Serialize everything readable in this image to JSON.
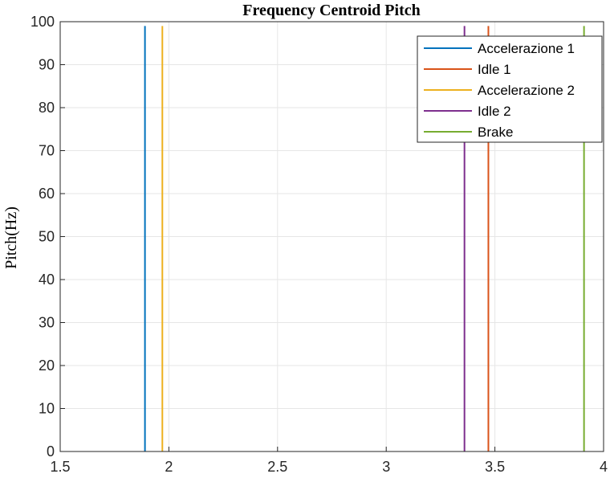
{
  "chart_data": {
    "type": "line",
    "title": "Frequency Centroid Pitch",
    "xlabel": "",
    "ylabel": "Pitch(Hz)",
    "xlim": [
      1.5,
      4
    ],
    "ylim": [
      0,
      100
    ],
    "xticks": [
      "1.5",
      "2",
      "2.5",
      "3",
      "3.5",
      "4"
    ],
    "yticks": [
      "0",
      "10",
      "20",
      "30",
      "40",
      "50",
      "60",
      "70",
      "80",
      "90",
      "100"
    ],
    "grid": true,
    "legend_position": "top-right",
    "series": [
      {
        "name": "Accelerazione 1",
        "color": "#0072BD",
        "x": [
          1.89,
          1.89
        ],
        "y": [
          0,
          99
        ]
      },
      {
        "name": "Idle 1",
        "color": "#D95319",
        "x": [
          3.47,
          3.47
        ],
        "y": [
          0,
          99
        ]
      },
      {
        "name": "Accelerazione 2",
        "color": "#EDB120",
        "x": [
          1.97,
          1.97
        ],
        "y": [
          0,
          99
        ]
      },
      {
        "name": "Idle 2",
        "color": "#7E2F8E",
        "x": [
          3.36,
          3.36
        ],
        "y": [
          0,
          99
        ]
      },
      {
        "name": "Brake",
        "color": "#77AC30",
        "x": [
          3.91,
          3.91
        ],
        "y": [
          0,
          99
        ]
      }
    ]
  }
}
